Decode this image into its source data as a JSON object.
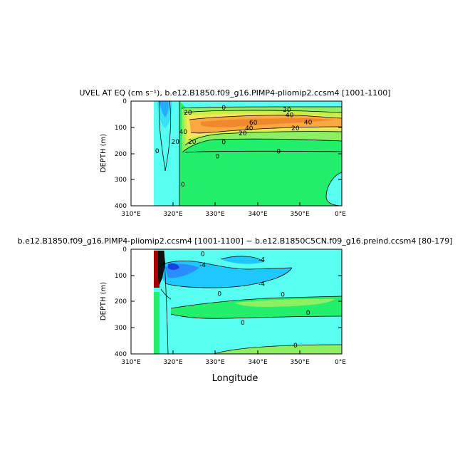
{
  "chart_data": [
    {
      "type": "contour",
      "title": "UVEL AT EQ (cm s⁻¹), b.e12.B1850.f09_g16.PIMP4-pliomip2.ccsm4 [1001-1100]",
      "xlabel": "",
      "ylabel": "DEPTH (m)",
      "xlim": [
        310,
        360
      ],
      "ylim": [
        400,
        0
      ],
      "x_ticks": [
        "310°E",
        "320°E",
        "330°E",
        "340°E",
        "350°E",
        "0°E"
      ],
      "y_ticks": [
        "0",
        "100",
        "200",
        "300",
        "400"
      ],
      "contour_labels": [
        {
          "text": "0",
          "x": 332,
          "y": 25
        },
        {
          "text": "0",
          "x": 316.2,
          "y": 190
        },
        {
          "text": "20",
          "x": 320.5,
          "y": 155
        },
        {
          "text": "20",
          "x": 323.5,
          "y": 43
        },
        {
          "text": "40",
          "x": 322.4,
          "y": 117
        },
        {
          "text": "20",
          "x": 324.5,
          "y": 155
        },
        {
          "text": "60",
          "x": 339,
          "y": 82
        },
        {
          "text": "40",
          "x": 338,
          "y": 103
        },
        {
          "text": "20",
          "x": 336.5,
          "y": 122
        },
        {
          "text": "40",
          "x": 352,
          "y": 80
        },
        {
          "text": "20",
          "x": 349,
          "y": 103
        },
        {
          "text": "20",
          "x": 347,
          "y": 33
        },
        {
          "text": "40",
          "x": 347.6,
          "y": 53
        },
        {
          "text": "0",
          "x": 332,
          "y": 157
        },
        {
          "text": "0",
          "x": 345,
          "y": 192
        },
        {
          "text": "0",
          "x": 330.5,
          "y": 211
        },
        {
          "text": "0",
          "x": 322.3,
          "y": 318
        }
      ]
    },
    {
      "type": "contour",
      "title": "b.e12.B1850.f09_g16.PIMP4-pliomip2.ccsm4 [1001-1100] − b.e12.B1850C5CN.f09_g16.preind.ccsm4 [80-179]",
      "xlabel": "Longitude",
      "ylabel": "DEPTH (m)",
      "xlim": [
        310,
        360
      ],
      "ylim": [
        400,
        0
      ],
      "x_ticks": [
        "310°E",
        "320°E",
        "330°E",
        "340°E",
        "350°E",
        "0°E"
      ],
      "y_ticks": [
        "0",
        "100",
        "200",
        "300",
        "400"
      ],
      "contour_labels": [
        {
          "text": "-4",
          "x": 327,
          "y": 60
        },
        {
          "text": "0",
          "x": 327,
          "y": 18
        },
        {
          "text": "-4",
          "x": 341,
          "y": 40
        },
        {
          "text": "-4",
          "x": 341,
          "y": 132
        },
        {
          "text": "0",
          "x": 331,
          "y": 170
        },
        {
          "text": "0",
          "x": 346,
          "y": 173
        },
        {
          "text": "0",
          "x": 352,
          "y": 242
        },
        {
          "text": "0",
          "x": 336.5,
          "y": 280
        },
        {
          "text": "0",
          "x": 349,
          "y": 368
        }
      ]
    }
  ]
}
